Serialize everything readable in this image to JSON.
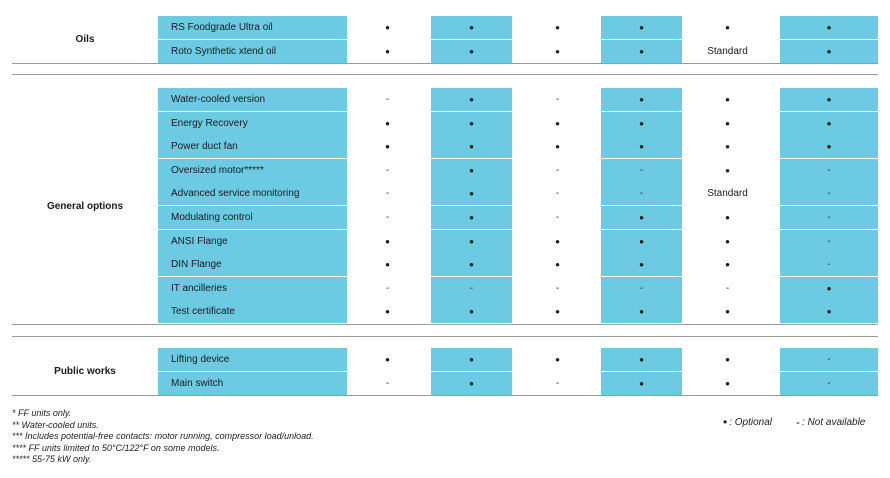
{
  "colors": {
    "accent": "#6ccbe3",
    "rule": "#9a9a9a"
  },
  "sections": [
    {
      "label": "Oils",
      "rows": [
        {
          "name": "RS Foodgrade Ultra oil",
          "values": [
            "•",
            "•",
            "•",
            "•",
            "•",
            "•"
          ]
        },
        {
          "name": "Roto Synthetic xtend oil",
          "values": [
            "•",
            "•",
            "•",
            "•",
            "Standard",
            "•"
          ]
        }
      ]
    },
    {
      "label": "General options",
      "rows": [
        {
          "name": "Water-cooled version",
          "values": [
            "-",
            "•",
            "-",
            "•",
            "•",
            "•"
          ]
        },
        {
          "name": "Energy Recovery",
          "values": [
            "•",
            "•",
            "•",
            "•",
            "•",
            "•"
          ]
        },
        {
          "name": "Power duct fan",
          "values": [
            "•",
            "•",
            "•",
            "•",
            "•",
            "•"
          ]
        },
        {
          "name": "Oversized motor*****",
          "values": [
            "-",
            "•",
            "-",
            "-",
            "•",
            "-"
          ]
        },
        {
          "name": "Advanced service monitoring",
          "values": [
            "-",
            "•",
            "-",
            "-",
            "Standard",
            "-"
          ]
        },
        {
          "name": "Modulating control",
          "values": [
            "-",
            "•",
            "-",
            "•",
            "•",
            "-"
          ]
        },
        {
          "name": "ANSI Flange",
          "values": [
            "•",
            "•",
            "•",
            "•",
            "•",
            "-"
          ]
        },
        {
          "name": "DIN Flange",
          "values": [
            "•",
            "•",
            "•",
            "•",
            "•",
            "-"
          ]
        },
        {
          "name": "IT ancilleries",
          "values": [
            "-",
            "-",
            "-",
            "-",
            "-",
            "•"
          ]
        },
        {
          "name": "Test certificate",
          "values": [
            "•",
            "•",
            "•",
            "•",
            "•",
            "•"
          ]
        }
      ]
    },
    {
      "label": "Public works",
      "rows": [
        {
          "name": "Lifting device",
          "values": [
            "•",
            "•",
            "•",
            "•",
            "•",
            "-"
          ]
        },
        {
          "name": "Main switch",
          "values": [
            "-",
            "•",
            "-",
            "•",
            "•",
            "-"
          ]
        }
      ]
    }
  ],
  "footnotes": [
    "* FF units only.",
    "** Water-cooled units.",
    "*** Includes potential-free contacts: motor running, compressor load/unload.",
    "**** FF units limited to 50°C/122°F on some models.",
    "***** 55-75 kW only."
  ],
  "legend": {
    "optional_symbol": "•",
    "optional_label": ": Optional",
    "na_symbol": "-",
    "na_label": ": Not available"
  }
}
